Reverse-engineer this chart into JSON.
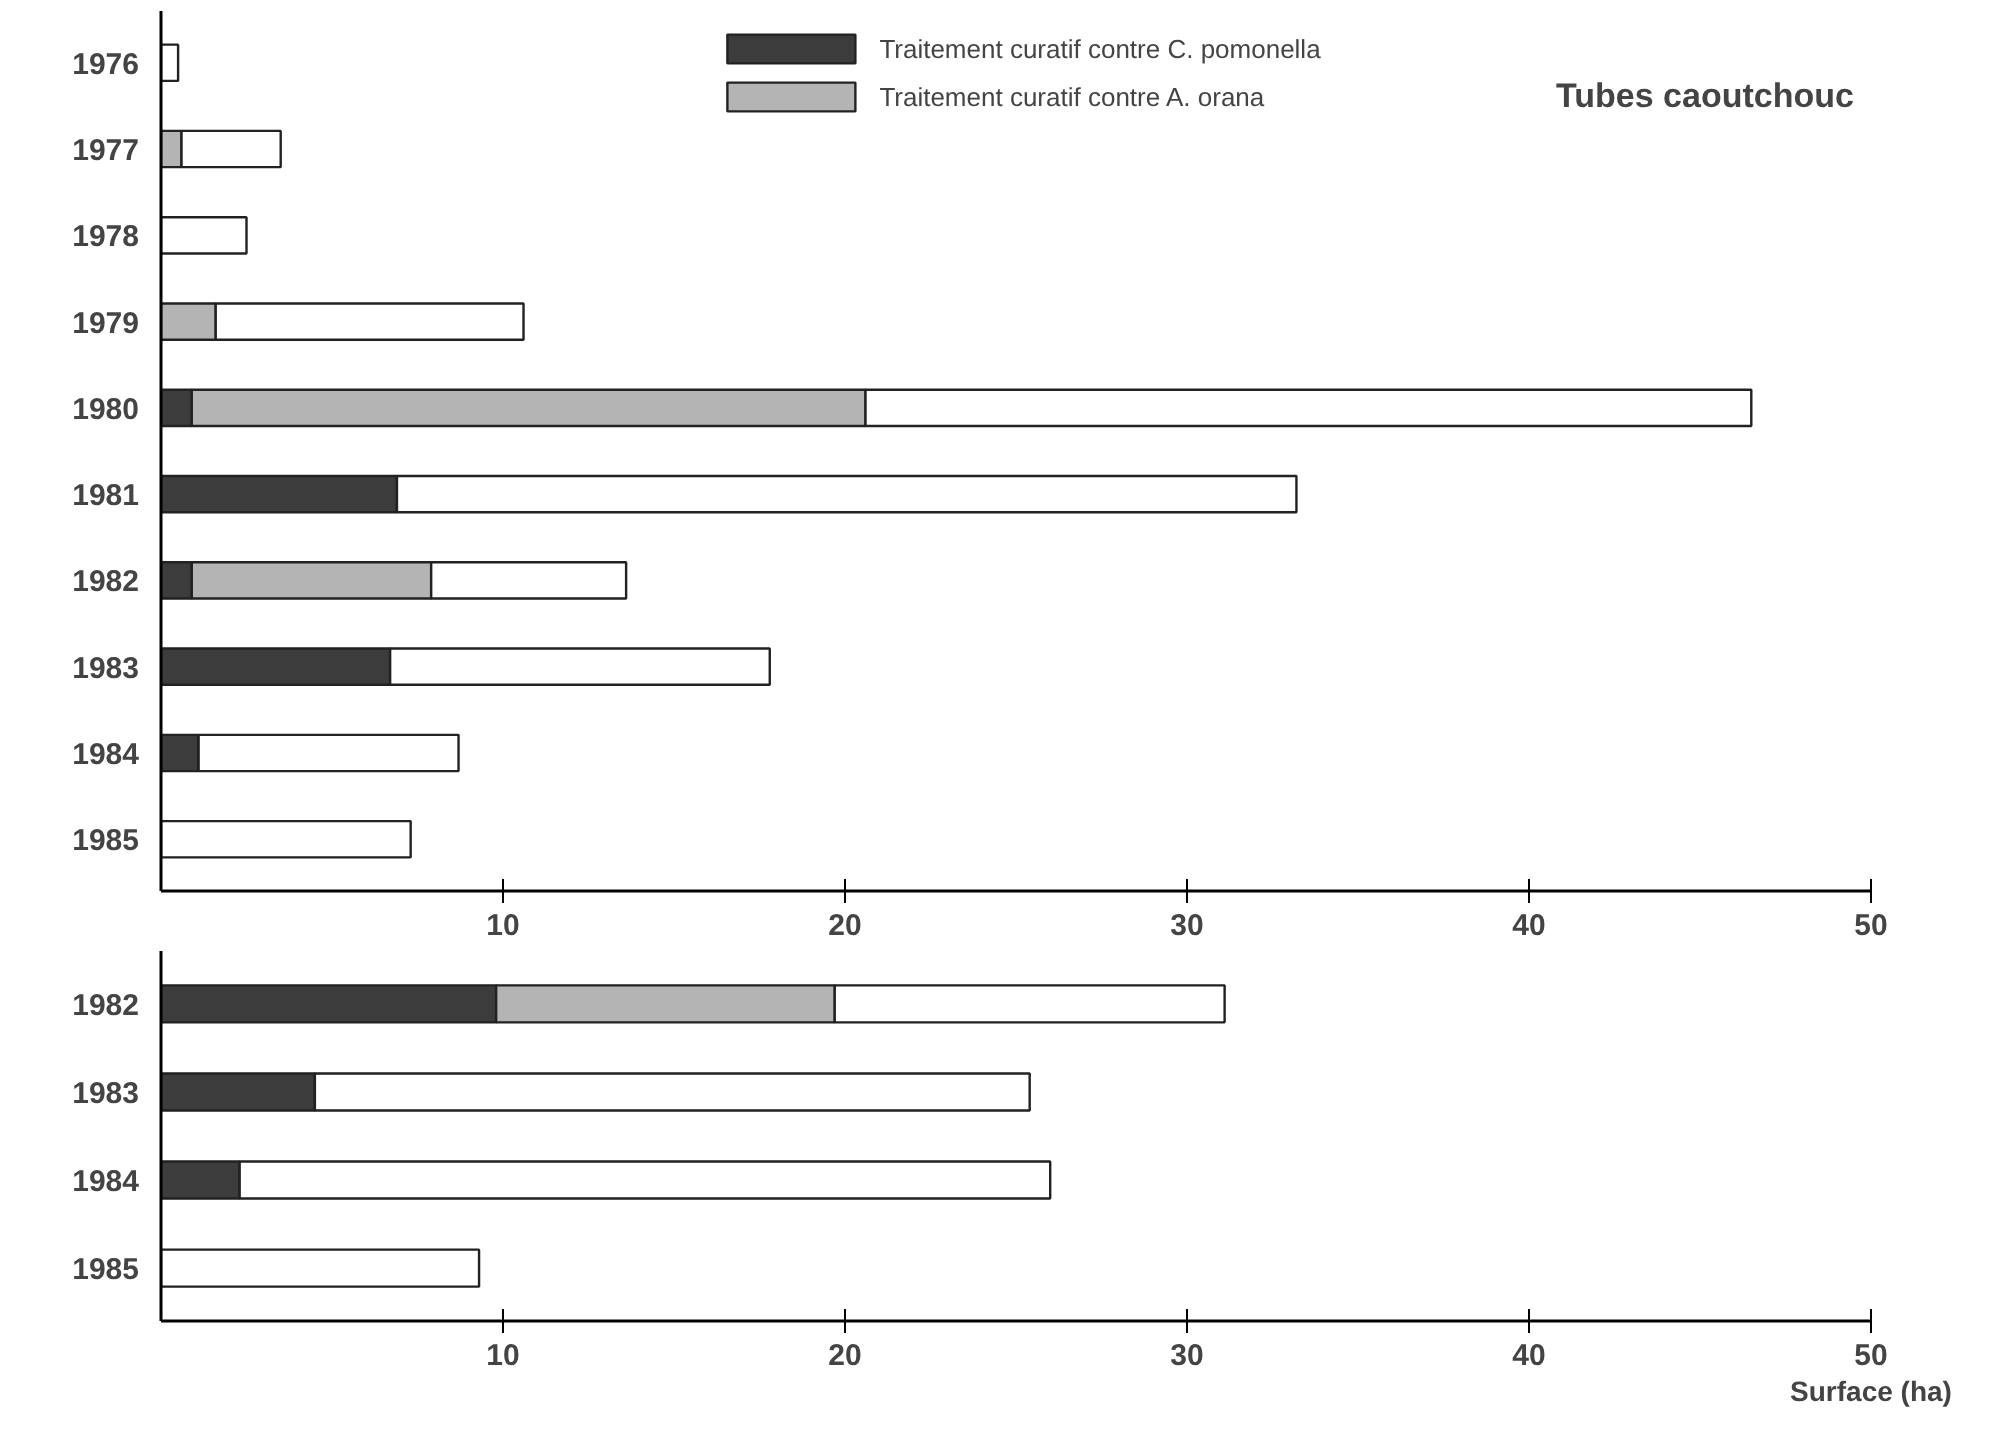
{
  "chart_data": [
    {
      "type": "bar",
      "orientation": "horizontal",
      "stacked": true,
      "title": "Tubes caoutchouc",
      "legend": "top",
      "categories": [
        "1976",
        "1977",
        "1978",
        "1979",
        "1980",
        "1981",
        "1982",
        "1983",
        "1984",
        "1985"
      ],
      "series": [
        {
          "name": "Traitement curatif contre C. pomonella",
          "color": "#3c3c3c",
          "values": [
            0,
            0,
            0,
            0,
            0.9,
            6.9,
            0.9,
            6.7,
            1.1,
            0
          ]
        },
        {
          "name": "Traitement curatif contre A. orana",
          "color": "#b4b4b4",
          "values": [
            0,
            0.6,
            0,
            1.6,
            19.7,
            0,
            7.0,
            0,
            0,
            0
          ]
        },
        {
          "color": "#ffffff",
          "values": [
            0.5,
            2.9,
            2.5,
            9.0,
            25.9,
            26.3,
            5.7,
            11.1,
            7.6,
            7.3
          ]
        }
      ],
      "xlim": [
        0,
        50
      ],
      "xticks": [
        10,
        20,
        30,
        40,
        50
      ]
    },
    {
      "type": "bar",
      "orientation": "horizontal",
      "stacked": true,
      "xlabel": "Surface (ha)",
      "categories": [
        "1982",
        "1983",
        "1984",
        "1985"
      ],
      "series": [
        {
          "color": "#3c3c3c",
          "values": [
            9.8,
            4.5,
            2.3,
            0
          ]
        },
        {
          "color": "#b4b4b4",
          "values": [
            9.9,
            0,
            0,
            0
          ]
        },
        {
          "color": "#ffffff",
          "values": [
            11.4,
            20.9,
            23.7,
            9.3
          ]
        }
      ],
      "xlim": [
        0,
        50
      ],
      "xticks": [
        10,
        20,
        30,
        40,
        50
      ]
    }
  ]
}
